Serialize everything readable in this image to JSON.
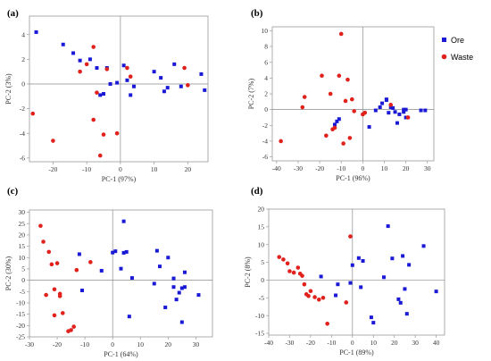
{
  "legend": {
    "items": [
      {
        "label": "Ore",
        "color": "#1a1ad6"
      },
      {
        "label": "Waste",
        "color": "#e0211c"
      }
    ]
  },
  "chart_data": [
    {
      "type": "scatter",
      "panel_label": "(a)",
      "xlabel": "PC-1 (97%)",
      "ylabel": "PC-2 (3%)",
      "xlim": [
        -27,
        26
      ],
      "ylim": [
        -6.3,
        5.5
      ],
      "xticks": [
        -20,
        -10,
        0,
        10,
        20
      ],
      "yticks": [
        4,
        2,
        0,
        -2,
        -4,
        -6
      ],
      "grid": false,
      "series": [
        {
          "name": "Ore",
          "color": "#1a1ad6",
          "x": [
            -25,
            -17,
            -14,
            -12,
            -9,
            -7,
            -6,
            -5,
            -4,
            -3,
            -1,
            1,
            2,
            3,
            4,
            10,
            12,
            13,
            14,
            16,
            18,
            24,
            25
          ],
          "y": [
            4.2,
            3.2,
            2.5,
            1.9,
            2.0,
            1.3,
            -0.9,
            -0.8,
            1.3,
            0.0,
            0.1,
            1.5,
            0.3,
            -0.9,
            -0.2,
            1.0,
            0.5,
            -0.6,
            -0.3,
            1.6,
            -0.2,
            0.8,
            -0.5
          ]
        },
        {
          "name": "Waste",
          "color": "#e0211c",
          "x": [
            -26,
            -20,
            -12,
            -10,
            -8,
            -8,
            -7,
            -6,
            -5,
            -4,
            -1,
            2,
            3,
            19,
            20
          ],
          "y": [
            -2.4,
            -4.6,
            1.0,
            1.6,
            -2.9,
            3.0,
            -0.7,
            -5.8,
            -4.1,
            1.2,
            -4.0,
            1.3,
            0.6,
            1.3,
            -0.1
          ]
        }
      ]
    },
    {
      "type": "scatter",
      "panel_label": "(b)",
      "xlabel": "PC-1 (96%)",
      "ylabel": "PC-2 (7%)",
      "xlim": [
        -42,
        33
      ],
      "ylim": [
        -6.5,
        10.5
      ],
      "xticks": [
        -40,
        -30,
        -20,
        -10,
        0,
        10,
        20,
        30
      ],
      "yticks": [
        10,
        8,
        6,
        4,
        2,
        0,
        -2,
        -4,
        -6
      ],
      "grid": false,
      "series": [
        {
          "name": "Ore",
          "color": "#1a1ad6",
          "x": [
            -13,
            -12,
            -11,
            3,
            6,
            8,
            9,
            11,
            11,
            12,
            13,
            14,
            15,
            16,
            17,
            19,
            20,
            27,
            29
          ],
          "y": [
            -1.9,
            -1.5,
            -1.2,
            -2.2,
            -0.1,
            0.3,
            0.8,
            1.2,
            1.3,
            -0.4,
            0.3,
            0.2,
            -0.3,
            -1.7,
            -0.6,
            -0.3,
            -1.0,
            -0.1,
            -0.1
          ],
          "extra": {
            "x": [
              19,
              20
            ],
            "y": [
              0.0,
              0.0
            ]
          }
        },
        {
          "name": "Waste",
          "color": "#e0211c",
          "x": [
            -38,
            -28,
            -27,
            -19,
            -17,
            -15,
            -14,
            -13,
            -11,
            -10,
            -9,
            -8,
            -7,
            -6,
            -5,
            -4,
            0,
            1,
            13,
            21
          ],
          "y": [
            -4.0,
            0.3,
            1.6,
            4.3,
            -3.3,
            2.0,
            -2.5,
            -2.3,
            4.3,
            9.6,
            -4.3,
            1.1,
            3.8,
            -3.6,
            1.3,
            -0.2,
            -0.6,
            -0.4,
            0.6,
            -1.0
          ]
        }
      ]
    },
    {
      "type": "scatter",
      "panel_label": "(c)",
      "xlabel": "PC-1 (64%)",
      "ylabel": "PC-2 (30%)",
      "xlim": [
        -30,
        36
      ],
      "ylim": [
        -25,
        31
      ],
      "xticks": [
        -30,
        -20,
        -10,
        0,
        10,
        20,
        30
      ],
      "yticks": [
        30,
        25,
        20,
        15,
        10,
        5,
        0,
        -5,
        -10,
        -15,
        -20,
        -25
      ],
      "grid": false,
      "series": [
        {
          "name": "Ore",
          "color": "#1a1ad6",
          "x": [
            -12,
            -11,
            -4,
            0,
            1,
            3,
            4,
            4,
            5,
            6,
            7,
            15,
            16,
            17,
            19,
            20,
            22,
            22,
            23,
            24,
            25,
            25,
            26,
            26,
            31
          ],
          "y": [
            11.5,
            -4.5,
            4.2,
            12.2,
            12.8,
            5.1,
            12.1,
            26.0,
            12.5,
            -16.0,
            1.0,
            -1.5,
            13.0,
            6.1,
            -12.0,
            10.0,
            -3.0,
            0.8,
            -8.5,
            -5.5,
            -3.5,
            -18.5,
            3.5,
            -3.0,
            -6.5
          ]
        },
        {
          "name": "Waste",
          "color": "#e0211c",
          "x": [
            -26,
            -25,
            -24,
            -23,
            -22,
            -21,
            -21,
            -20,
            -19,
            -19,
            -18,
            -16,
            -15,
            -14,
            -13,
            -8
          ],
          "y": [
            24.0,
            17.0,
            -6.5,
            12.5,
            7.0,
            -15.5,
            -4.0,
            7.5,
            -7.0,
            -6.0,
            -14.5,
            -22.5,
            -22.0,
            -20.5,
            4.5,
            8.0
          ]
        }
      ]
    },
    {
      "type": "scatter",
      "panel_label": "(d)",
      "xlabel": "PC-1 (89%)",
      "ylabel": "PC-2 (8%)",
      "xlim": [
        -40,
        44
      ],
      "ylim": [
        -15.5,
        20
      ],
      "xticks": [
        -40,
        -30,
        -20,
        -10,
        0,
        10,
        20,
        30,
        40
      ],
      "yticks": [
        20,
        15,
        10,
        5,
        0,
        -5,
        -10,
        -15
      ],
      "grid": false,
      "series": [
        {
          "name": "Ore",
          "color": "#1a1ad6",
          "x": [
            -15,
            -8,
            -7,
            -1,
            0,
            3,
            4,
            5,
            9,
            10,
            15,
            17,
            19,
            22,
            23,
            24,
            25,
            26,
            27,
            34,
            40
          ],
          "y": [
            1.0,
            -4.3,
            -1.2,
            -0.8,
            4.2,
            6.2,
            -2.0,
            5.4,
            -10.5,
            -12.0,
            0.8,
            15.2,
            6.1,
            -5.4,
            -6.4,
            6.8,
            -2.5,
            -9.5,
            4.3,
            9.6,
            -3.2
          ]
        },
        {
          "name": "Waste",
          "color": "#e0211c",
          "x": [
            -35,
            -33,
            -31,
            -30,
            -28,
            -26,
            -25,
            -24,
            -23,
            -22,
            -21,
            -20,
            -18,
            -16,
            -14,
            -12,
            -3,
            -1
          ],
          "y": [
            6.5,
            5.8,
            4.7,
            2.5,
            2.1,
            3.5,
            1.8,
            1.2,
            -1.2,
            -4.0,
            -4.5,
            -3.1,
            -4.8,
            -5.5,
            -5.0,
            -12.3,
            -6.3,
            12.3
          ]
        }
      ]
    }
  ]
}
